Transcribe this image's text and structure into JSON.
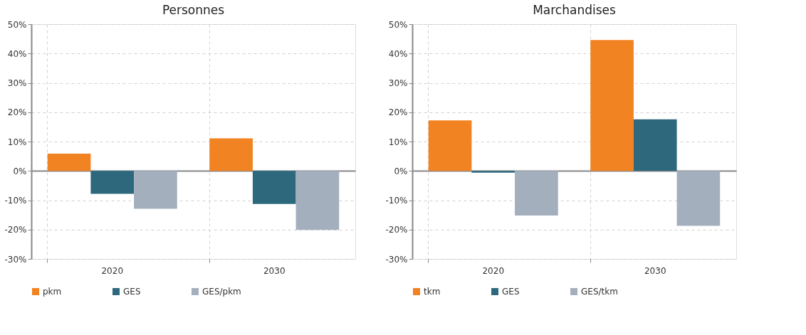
{
  "chart_data": [
    {
      "type": "bar",
      "title": "Personnes",
      "categories": [
        "2020",
        "2030"
      ],
      "series": [
        {
          "name": "pkm",
          "color": "#f28322",
          "values": [
            5.9,
            11.1
          ]
        },
        {
          "name": "GES",
          "color": "#2e687d",
          "values": [
            -7.8,
            -11.3
          ]
        },
        {
          "name": "GES/pkm",
          "color": "#a4afbd",
          "values": [
            -12.9,
            -20.1
          ]
        }
      ],
      "ylim": [
        -30,
        50
      ],
      "yticks": [
        {
          "value": -30,
          "label": "-30%"
        },
        {
          "value": -20,
          "label": "-20%"
        },
        {
          "value": -10,
          "label": "-10%"
        },
        {
          "value": 0,
          "label": "0%"
        },
        {
          "value": 10,
          "label": "10%"
        },
        {
          "value": 20,
          "label": "20%"
        },
        {
          "value": 30,
          "label": "30%"
        },
        {
          "value": 40,
          "label": "40%"
        },
        {
          "value": 50,
          "label": "50%"
        }
      ],
      "grid": true,
      "legend": "bottom"
    },
    {
      "type": "bar",
      "title": "Marchandises",
      "categories": [
        "2020",
        "2030"
      ],
      "series": [
        {
          "name": "tkm",
          "color": "#f28322",
          "values": [
            17.2,
            44.6
          ]
        },
        {
          "name": "GES",
          "color": "#2e687d",
          "values": [
            -0.6,
            17.6
          ]
        },
        {
          "name": "GES/tkm",
          "color": "#a4afbd",
          "values": [
            -15.2,
            -18.7
          ]
        }
      ],
      "ylim": [
        -30,
        50
      ],
      "yticks": [
        {
          "value": -30,
          "label": "-30%"
        },
        {
          "value": -20,
          "label": "-20%"
        },
        {
          "value": -10,
          "label": "-10%"
        },
        {
          "value": 0,
          "label": "0%"
        },
        {
          "value": 10,
          "label": "10%"
        },
        {
          "value": 20,
          "label": "20%"
        },
        {
          "value": 30,
          "label": "30%"
        },
        {
          "value": 40,
          "label": "40%"
        },
        {
          "value": 50,
          "label": "50%"
        }
      ],
      "grid": true,
      "legend": "bottom"
    }
  ]
}
